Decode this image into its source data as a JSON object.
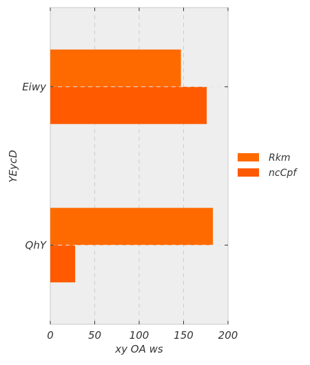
{
  "chart_data": {
    "type": "bar",
    "orientation": "horizontal",
    "categories": [
      "Eiwy",
      "QhY"
    ],
    "series": [
      {
        "name": "Rkm",
        "values": [
          147,
          183
        ],
        "color": "#ff6a00"
      },
      {
        "name": "ncCpf",
        "values": [
          176,
          28
        ],
        "color": "#ff5a00"
      }
    ],
    "xlabel": "xy OA ws",
    "ylabel": "YEycD",
    "xlim": [
      0,
      200
    ],
    "xticks": [
      0,
      50,
      100,
      150,
      200
    ],
    "grid": true,
    "legend_position": "right",
    "background_color": "#eeeeee"
  }
}
